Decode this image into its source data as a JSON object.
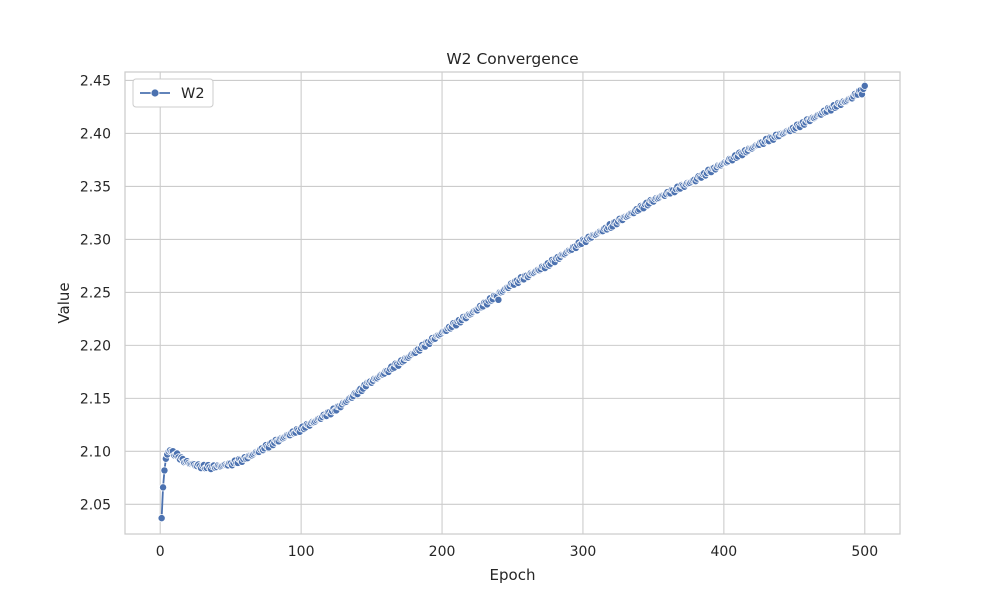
{
  "chart_data": {
    "type": "line",
    "title": "W2 Convergence",
    "xlabel": "Epoch",
    "ylabel": "Value",
    "xlim": [
      -25,
      525
    ],
    "ylim": [
      2.022,
      2.458
    ],
    "xticks": [
      0,
      100,
      200,
      300,
      400,
      500
    ],
    "yticks": [
      2.05,
      2.1,
      2.15,
      2.2,
      2.25,
      2.3,
      2.35,
      2.4,
      2.45
    ],
    "xtick_labels": [
      "0",
      "100",
      "200",
      "300",
      "400",
      "500"
    ],
    "ytick_labels": [
      "2.05",
      "2.10",
      "2.15",
      "2.20",
      "2.25",
      "2.30",
      "2.35",
      "2.40",
      "2.45"
    ],
    "grid": true,
    "legend_position": "top-left",
    "series": [
      {
        "name": "W2",
        "color": "#4c72b0",
        "marker": "circle",
        "x_range": [
          1,
          500
        ],
        "keypoints": [
          [
            1,
            2.037
          ],
          [
            2,
            2.066
          ],
          [
            3,
            2.082
          ],
          [
            4,
            2.093
          ],
          [
            5,
            2.097
          ],
          [
            6,
            2.1
          ],
          [
            7,
            2.101
          ],
          [
            8,
            2.1
          ],
          [
            10,
            2.098
          ],
          [
            13,
            2.095
          ],
          [
            17,
            2.091
          ],
          [
            22,
            2.088
          ],
          [
            28,
            2.086
          ],
          [
            35,
            2.085
          ],
          [
            42,
            2.086
          ],
          [
            50,
            2.088
          ],
          [
            60,
            2.093
          ],
          [
            75,
            2.104
          ],
          [
            90,
            2.115
          ],
          [
            100,
            2.121
          ],
          [
            125,
            2.14
          ],
          [
            150,
            2.166
          ],
          [
            175,
            2.188
          ],
          [
            200,
            2.212
          ],
          [
            225,
            2.234
          ],
          [
            250,
            2.258
          ],
          [
            275,
            2.276
          ],
          [
            300,
            2.298
          ],
          [
            325,
            2.317
          ],
          [
            350,
            2.337
          ],
          [
            375,
            2.353
          ],
          [
            400,
            2.372
          ],
          [
            425,
            2.39
          ],
          [
            450,
            2.405
          ],
          [
            475,
            2.423
          ],
          [
            490,
            2.433
          ],
          [
            500,
            2.443
          ]
        ],
        "outliers": [
          [
            147,
            2.165
          ],
          [
            240,
            2.243
          ],
          [
            320,
            2.311
          ],
          [
            380,
            2.355
          ],
          [
            498,
            2.437
          ]
        ]
      }
    ]
  }
}
